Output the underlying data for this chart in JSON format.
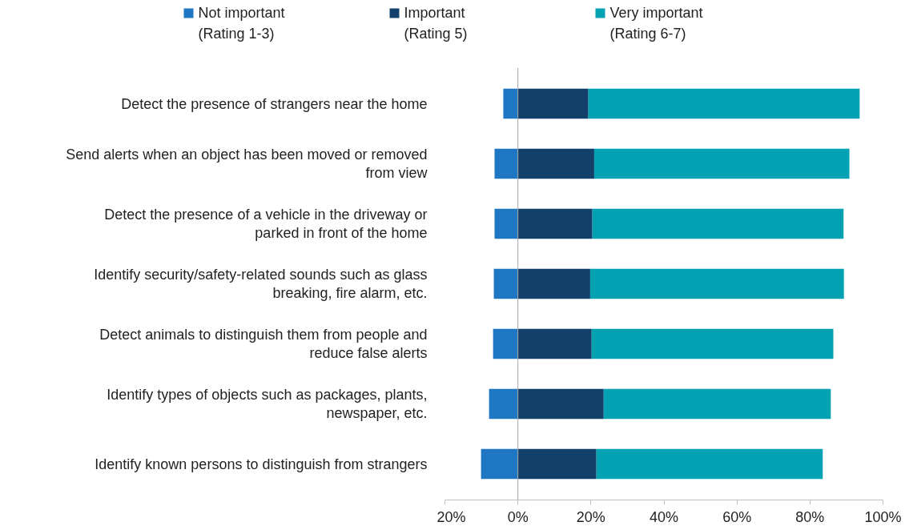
{
  "chart_data": {
    "type": "bar",
    "orientation": "horizontal",
    "stacked": true,
    "categories": [
      "Detect the presence of strangers near the home",
      "Send alerts when an object has been moved or removed from view",
      "Detect the presence of a vehicle in the driveway or parked in front of the home",
      "Identify security/safety-related sounds such as glass breaking, fire alarm, etc.",
      "Detect animals to distinguish them from people and reduce false alerts",
      "Identify types of objects such as packages, plants, newspaper, etc.",
      "Identify known persons to distinguish from strangers"
    ],
    "series": [
      {
        "name": "Not important\n(Rating 1-3)",
        "color": "#1f77c4",
        "values": [
          -4.0,
          -6.4,
          -6.4,
          -6.6,
          -6.8,
          -7.9,
          -10.1
        ]
      },
      {
        "name": "Important\n(Rating 5)",
        "color": "#12406b",
        "values": [
          19.3,
          20.9,
          20.4,
          19.8,
          20.2,
          23.5,
          21.5
        ]
      },
      {
        "name": "Very important\n(Rating 6-7)",
        "color": "#03a2b2",
        "values": [
          74.3,
          69.9,
          68.8,
          69.5,
          66.2,
          62.2,
          62.0
        ]
      }
    ],
    "xlim": [
      -20,
      100
    ],
    "xticks": [
      {
        "value": -20,
        "label": "20%"
      },
      {
        "value": 0,
        "label": "0%"
      },
      {
        "value": 20,
        "label": "20%"
      },
      {
        "value": 40,
        "label": "40%"
      },
      {
        "value": 60,
        "label": "60%"
      },
      {
        "value": 80,
        "label": "80%"
      },
      {
        "value": 100,
        "label": "100%"
      }
    ],
    "ref_lines": [
      {
        "axis": "x",
        "value": 0,
        "color": "#a6a6a6"
      }
    ],
    "grid": false,
    "legend": "top"
  }
}
